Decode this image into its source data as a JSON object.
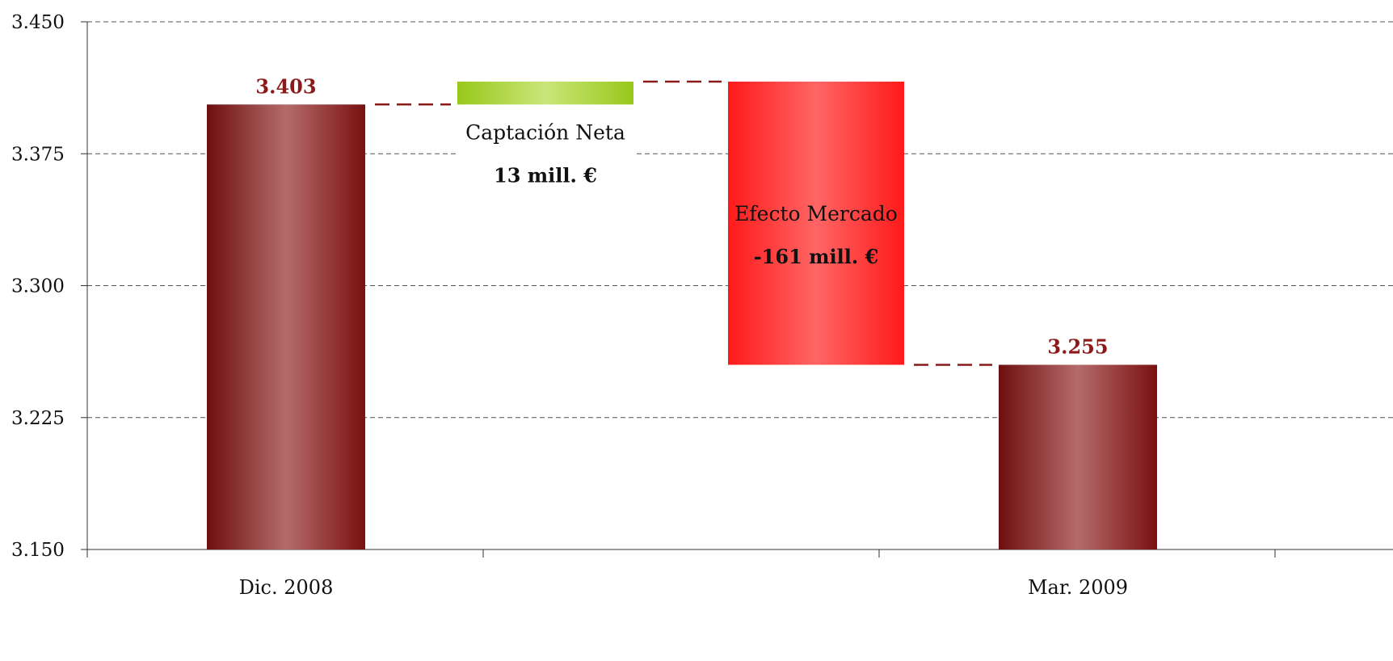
{
  "chart_data": {
    "type": "bar",
    "subtype": "waterfall",
    "y_ticks": [
      "3.450",
      "3.375",
      "3.300",
      "3.225",
      "3.150"
    ],
    "ylim": [
      3150,
      3450
    ],
    "grid": true,
    "grid_style": "dashed",
    "categories": [
      "Dic. 2008",
      "",
      "",
      "Mar. 2009"
    ],
    "bars": [
      {
        "kind": "total",
        "category": "Dic. 2008",
        "start": 3150,
        "end": 3403,
        "value_label": "3.403",
        "color": "#8b1a1a"
      },
      {
        "kind": "delta",
        "category": "",
        "start": 3403,
        "end": 3416,
        "title_label": "Captación Neta",
        "value_label": "13 mill.  €",
        "color": "#9ccc1a"
      },
      {
        "kind": "delta",
        "category": "",
        "start": 3416,
        "end": 3255,
        "title_label": "Efecto Mercado",
        "value_label": "-161 mill.  €",
        "color": "#ff2a2a"
      },
      {
        "kind": "total",
        "category": "Mar. 2009",
        "start": 3150,
        "end": 3255,
        "value_label": "3.255",
        "color": "#8b1a1a"
      }
    ],
    "colors": {
      "total_bar": "#8b1a1a",
      "total_label": "#8b1a1a",
      "captacion": "#9ccc1a",
      "efecto": "#ff2a2a",
      "connector": "#8b1a1a",
      "grid": "#555555",
      "axis": "#333333",
      "text": "#111111"
    }
  }
}
